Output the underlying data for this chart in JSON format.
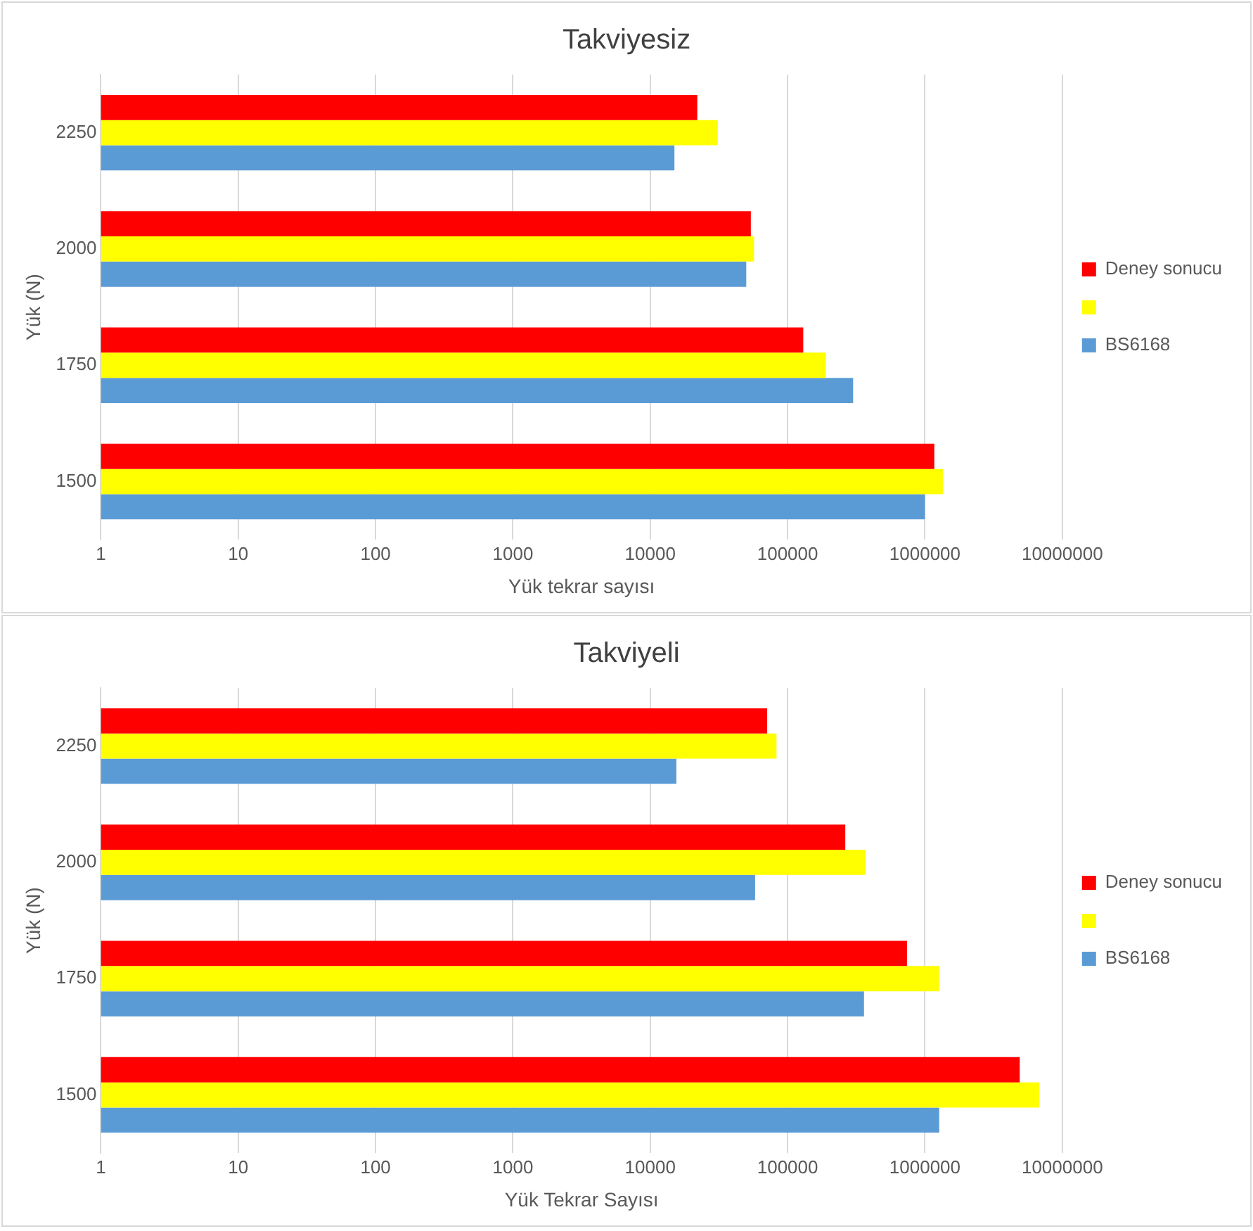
{
  "chart_data": [
    {
      "type": "bar",
      "orientation": "horizontal",
      "title": "Takviyesiz",
      "xlabel": "Yük tekrar sayısı",
      "ylabel": "Yük (N)",
      "categories": [
        "2250",
        "2000",
        "1750",
        "1500"
      ],
      "series": [
        {
          "name": "Deney sonucu",
          "color": "#ff0000",
          "values": [
            22000,
            54000,
            130000,
            1170000
          ]
        },
        {
          "color": "#ffff00",
          "values": [
            31000,
            57000,
            190000,
            1350000
          ]
        },
        {
          "name": "BS6168",
          "color": "#5b9bd5",
          "values": [
            15000,
            50000,
            300000,
            1000000
          ]
        }
      ],
      "log": "x",
      "xlim": [
        1,
        10000000
      ],
      "xticks": [
        1,
        10,
        100,
        1000,
        10000,
        100000,
        1000000,
        10000000
      ],
      "grid": "x",
      "legend": "right"
    },
    {
      "type": "bar",
      "orientation": "horizontal",
      "title": "Takviyeli",
      "xlabel": "Yük Tekrar Sayısı",
      "ylabel": "Yük (N)",
      "categories": [
        "2250",
        "2000",
        "1750",
        "1500"
      ],
      "series": [
        {
          "name": "Deney sonucu",
          "color": "#ff0000",
          "values": [
            71000,
            263000,
            740000,
            4900000
          ]
        },
        {
          "color": "#ffff00",
          "values": [
            83000,
            370000,
            1270000,
            6800000
          ]
        },
        {
          "name": "BS6168",
          "color": "#5b9bd5",
          "values": [
            15500,
            58000,
            360000,
            1270000
          ]
        }
      ],
      "log": "x",
      "xlim": [
        1,
        10000000
      ],
      "xticks": [
        1,
        10,
        100,
        1000,
        10000,
        100000,
        1000000,
        10000000
      ],
      "grid": "x",
      "legend": "right"
    }
  ]
}
